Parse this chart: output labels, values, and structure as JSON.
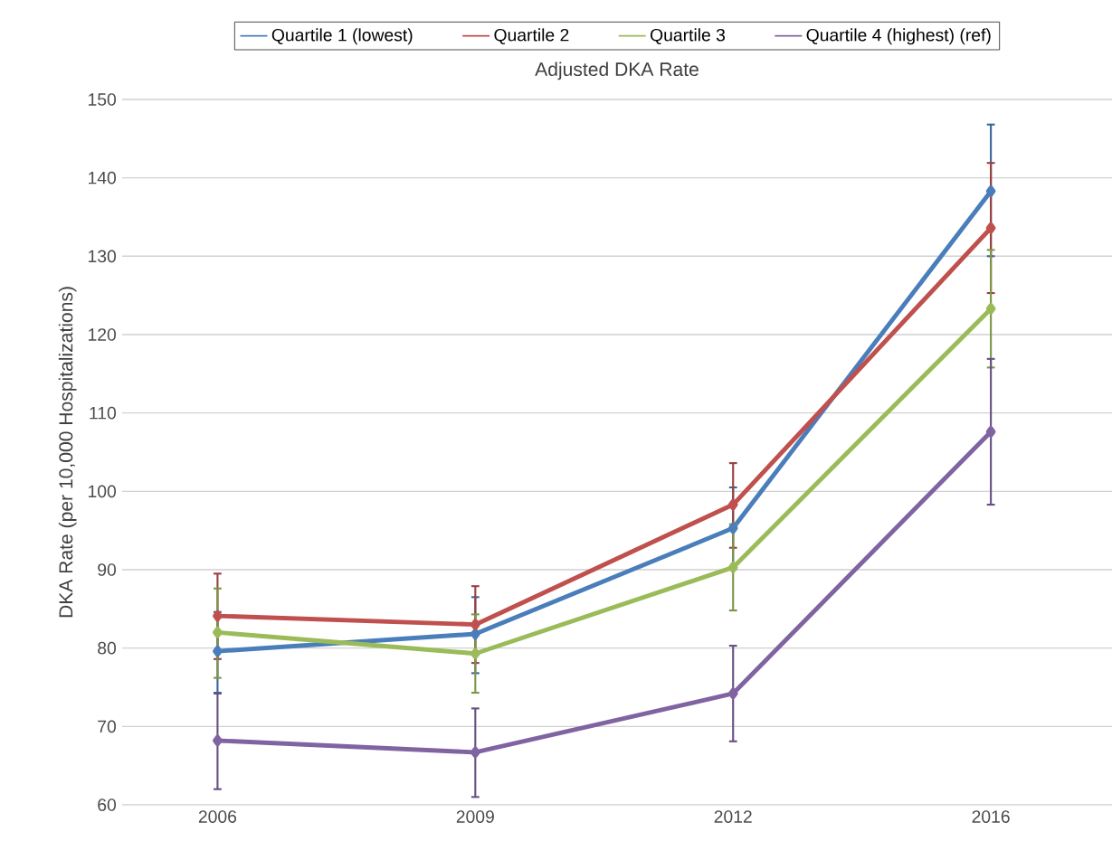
{
  "chart_data": {
    "type": "line",
    "title": "Adjusted DKA Rate",
    "ylabel": "DKA Rate (per 10,000 Hospitalizations)",
    "categories": [
      "2006",
      "2009",
      "2012",
      "2016"
    ],
    "series": [
      {
        "name": "Quartile 1 (lowest)",
        "color": "#4a7ebb",
        "values": [
          79.6,
          81.8,
          95.3,
          138.3
        ],
        "errors": [
          [
            74.3,
            84.6
          ],
          [
            76.8,
            86.5
          ],
          [
            90.1,
            100.5
          ],
          [
            130.0,
            146.8
          ]
        ]
      },
      {
        "name": "Quartile 2",
        "color": "#c0504d",
        "values": [
          84.1,
          83.0,
          98.3,
          133.6
        ],
        "errors": [
          [
            78.6,
            89.5
          ],
          [
            78.1,
            87.9
          ],
          [
            92.8,
            103.6
          ],
          [
            125.3,
            141.9
          ]
        ]
      },
      {
        "name": "Quartile 3",
        "color": "#9bbb59",
        "values": [
          82.0,
          79.3,
          90.3,
          123.3
        ],
        "errors": [
          [
            76.2,
            87.6
          ],
          [
            74.3,
            84.3
          ],
          [
            84.8,
            95.8
          ],
          [
            115.8,
            130.8
          ]
        ]
      },
      {
        "name": "Quartile 4 (highest)  (ref)",
        "color": "#8064a2",
        "values": [
          68.2,
          66.7,
          74.2,
          107.6
        ],
        "errors": [
          [
            62.0,
            74.2
          ],
          [
            61.0,
            72.3
          ],
          [
            68.1,
            80.3
          ],
          [
            98.3,
            116.9
          ]
        ]
      }
    ],
    "ylim": [
      60,
      150
    ],
    "yticks": [
      60,
      70,
      80,
      90,
      100,
      110,
      120,
      130,
      140,
      150
    ],
    "grid": "y",
    "legend": "top",
    "marker": "diamond",
    "line_style": "solid"
  }
}
